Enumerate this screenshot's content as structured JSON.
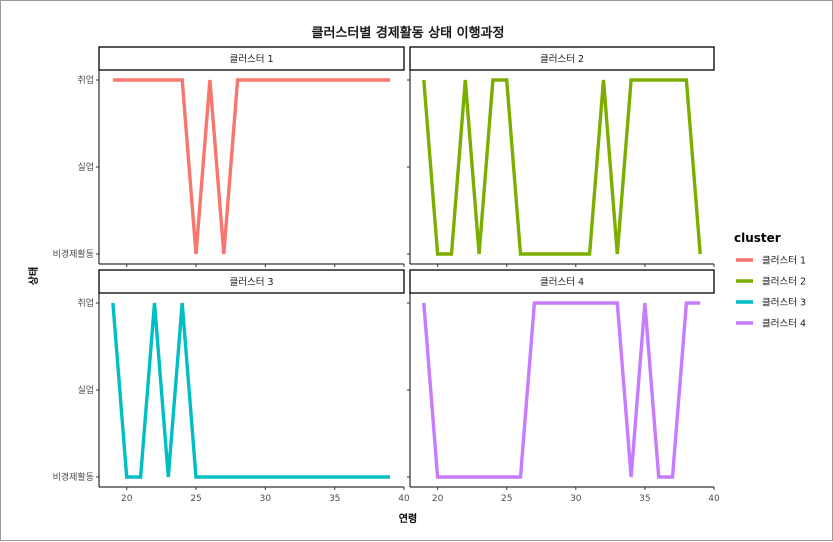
{
  "chart_data": {
    "type": "line",
    "title": "클러스터별 경제활동 상태 이행과정",
    "xlabel": "연령",
    "ylabel": "상태",
    "xlim": [
      18,
      40
    ],
    "x_ticks": [
      20,
      25,
      30,
      35,
      40
    ],
    "y_categories": [
      "비경제활동",
      "실업",
      "취업"
    ],
    "legend_title": "cluster",
    "legend_position": "right",
    "grid": false,
    "colors": {
      "클러스터 1": "#F8766D",
      "클러스터 2": "#7CAE00",
      "클러스터 3": "#00BFC4",
      "클러스터 4": "#C77CFF"
    },
    "panels": [
      {
        "name": "클러스터 1",
        "x": [
          19,
          20,
          21,
          22,
          23,
          24,
          25,
          26,
          27,
          28,
          29,
          30,
          31,
          32,
          33,
          34,
          35,
          36,
          37,
          38,
          39
        ],
        "y": [
          "취업",
          "취업",
          "취업",
          "취업",
          "취업",
          "취업",
          "비경제활동",
          "취업",
          "비경제활동",
          "취업",
          "취업",
          "취업",
          "취업",
          "취업",
          "취업",
          "취업",
          "취업",
          "취업",
          "취업",
          "취업",
          "취업"
        ]
      },
      {
        "name": "클러스터 2",
        "x": [
          19,
          20,
          21,
          22,
          23,
          24,
          25,
          26,
          27,
          28,
          29,
          30,
          31,
          32,
          33,
          34,
          35,
          36,
          37,
          38,
          39
        ],
        "y": [
          "취업",
          "비경제활동",
          "비경제활동",
          "취업",
          "비경제활동",
          "취업",
          "취업",
          "비경제활동",
          "비경제활동",
          "비경제활동",
          "비경제활동",
          "비경제활동",
          "비경제활동",
          "취업",
          "비경제활동",
          "취업",
          "취업",
          "취업",
          "취업",
          "취업",
          "비경제활동"
        ]
      },
      {
        "name": "클러스터 3",
        "x": [
          19,
          20,
          21,
          22,
          23,
          24,
          25,
          26,
          27,
          28,
          29,
          30,
          31,
          32,
          33,
          34,
          35,
          36,
          37,
          38,
          39
        ],
        "y": [
          "취업",
          "비경제활동",
          "비경제활동",
          "취업",
          "비경제활동",
          "취업",
          "비경제활동",
          "비경제활동",
          "비경제활동",
          "비경제활동",
          "비경제활동",
          "비경제활동",
          "비경제활동",
          "비경제활동",
          "비경제활동",
          "비경제활동",
          "비경제활동",
          "비경제활동",
          "비경제활동",
          "비경제활동",
          "비경제활동"
        ]
      },
      {
        "name": "클러스터 4",
        "x": [
          19,
          20,
          21,
          22,
          23,
          24,
          25,
          26,
          27,
          28,
          29,
          30,
          31,
          32,
          33,
          34,
          35,
          36,
          37,
          38,
          39
        ],
        "y": [
          "취업",
          "비경제활동",
          "비경제활동",
          "비경제활동",
          "비경제활동",
          "비경제활동",
          "비경제활동",
          "비경제활동",
          "취업",
          "취업",
          "취업",
          "취업",
          "취업",
          "취업",
          "취업",
          "비경제활동",
          "취업",
          "비경제활동",
          "비경제활동",
          "취업",
          "취업"
        ]
      }
    ]
  }
}
